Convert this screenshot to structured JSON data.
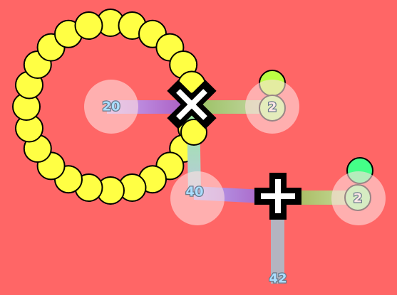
{
  "colors": {
    "background": "#ff6666",
    "yellow_ball": "#ffff44",
    "halo": "#ffd0d0",
    "pipe_purple": "#b06ccc",
    "pipe_green": "#a8b878",
    "pipe_grey": "#b4b4c0",
    "pipe_light_green": "#b8e0a0",
    "lime_ball": "#bbff44",
    "mint_ball": "#44ff88",
    "label_text": "#aaddff",
    "light_text": "#ffe8e8"
  },
  "board": {
    "ring_ball_count": 24,
    "operators": [
      {
        "name": "multiply-operator",
        "icon": "multiply-icon"
      },
      {
        "name": "add-operator",
        "icon": "plus-icon"
      }
    ],
    "nodes": [
      {
        "id": "n20",
        "value": "20"
      },
      {
        "id": "n2_top",
        "value": "2"
      },
      {
        "id": "n40",
        "value": "40"
      },
      {
        "id": "n2_right",
        "value": "2"
      },
      {
        "id": "n42",
        "value": "42"
      }
    ]
  }
}
